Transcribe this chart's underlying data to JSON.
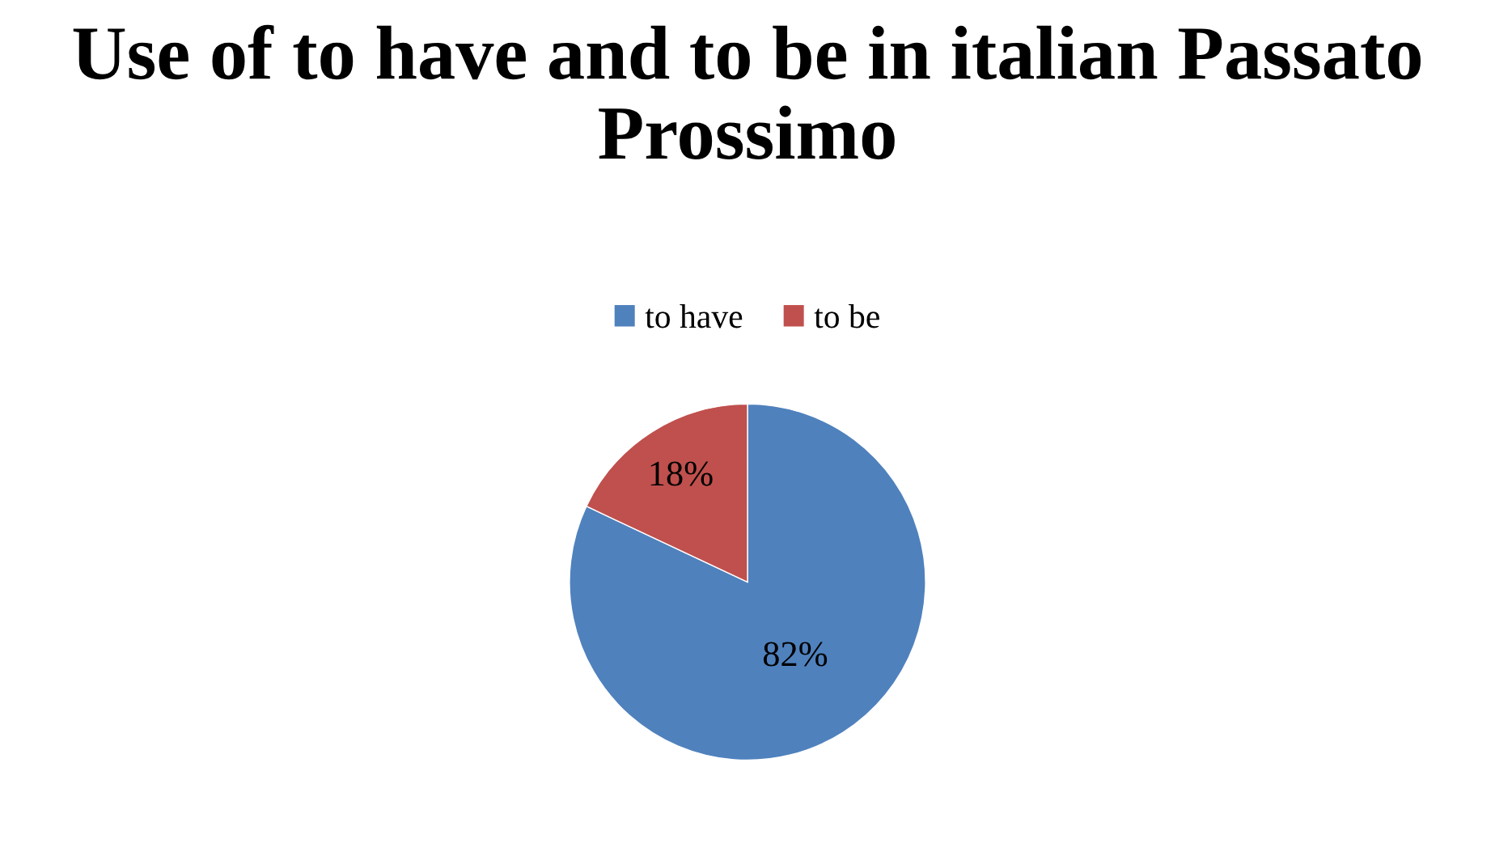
{
  "chart_data": {
    "type": "pie",
    "title": "Use of to have and to be in italian Passato Prossimo",
    "categories": [
      "to have",
      "to be"
    ],
    "values": [
      82,
      18
    ],
    "colors": [
      "#4f81bd",
      "#c0504d"
    ],
    "value_labels": [
      "82%",
      "18%"
    ],
    "legend": "top"
  }
}
